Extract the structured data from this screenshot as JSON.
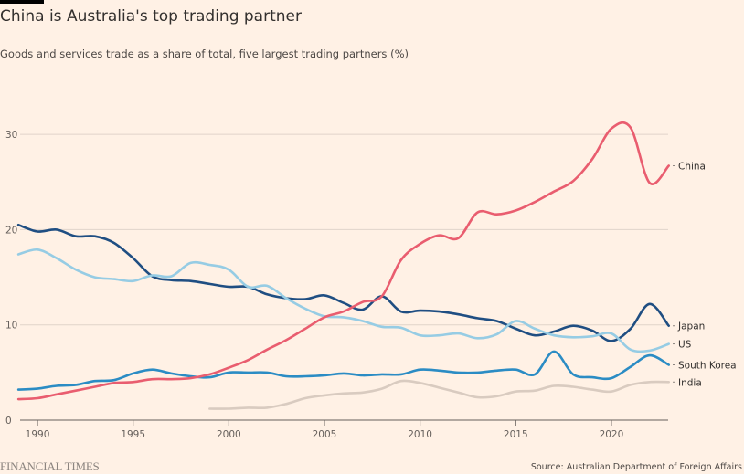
{
  "header": {
    "title": "China is Australia's top trading partner",
    "subtitle": "Goods and services trade as a share of total, five largest trading partners (%)"
  },
  "footer": {
    "brand": "FINANCIAL TIMES",
    "source": "Source: Australian Department of Foreign Affairs"
  },
  "chart_data": {
    "type": "line",
    "title": "China is Australia's top trading partner",
    "subtitle": "Goods and services trade as a share of total, five largest trading partners (%)",
    "xlabel": "",
    "ylabel": "",
    "xlim": [
      1989,
      2023
    ],
    "ylim": [
      0,
      33
    ],
    "x_ticks": [
      "1990",
      "1995",
      "2000",
      "2005",
      "2010",
      "2015",
      "2020"
    ],
    "y_ticks": [
      "0",
      "10",
      "20",
      "30"
    ],
    "grid": true,
    "legend": "direct labels at right",
    "series": [
      {
        "name": "China",
        "color": "#e95d6f",
        "start": 1989,
        "values": [
          2.2,
          2.3,
          2.7,
          3.1,
          3.5,
          3.9,
          4.0,
          4.3,
          4.3,
          4.4,
          4.8,
          5.5,
          6.3,
          7.4,
          8.4,
          9.6,
          10.8,
          11.4,
          12.4,
          13.0,
          16.8,
          18.5,
          19.4,
          19.1,
          21.8,
          21.6,
          22.0,
          22.9,
          24.0,
          25.1,
          27.4,
          30.6,
          30.7,
          24.9,
          26.7
        ]
      },
      {
        "name": "Japan",
        "color": "#1f4e82",
        "start": 1989,
        "values": [
          20.5,
          19.8,
          20.0,
          19.3,
          19.3,
          18.6,
          17.0,
          15.1,
          14.7,
          14.6,
          14.3,
          14.0,
          14.0,
          13.2,
          12.8,
          12.7,
          13.1,
          12.3,
          11.6,
          13.0,
          11.4,
          11.5,
          11.4,
          11.1,
          10.7,
          10.4,
          9.6,
          8.9,
          9.3,
          9.9,
          9.4,
          8.3,
          9.6,
          12.2,
          9.9
        ]
      },
      {
        "name": "US",
        "color": "#96cce4",
        "start": 1989,
        "values": [
          17.4,
          17.9,
          17.0,
          15.8,
          15.0,
          14.8,
          14.6,
          15.2,
          15.1,
          16.5,
          16.3,
          15.8,
          14.0,
          14.1,
          12.8,
          11.7,
          10.9,
          10.8,
          10.4,
          9.8,
          9.7,
          8.9,
          8.9,
          9.1,
          8.6,
          9.0,
          10.4,
          9.6,
          8.9,
          8.7,
          8.8,
          9.1,
          7.4,
          7.3,
          8.0
        ]
      },
      {
        "name": "South Korea",
        "color": "#2b8cc4",
        "start": 1989,
        "values": [
          3.2,
          3.3,
          3.6,
          3.7,
          4.1,
          4.2,
          4.9,
          5.3,
          4.9,
          4.6,
          4.5,
          5.0,
          5.0,
          5.0,
          4.6,
          4.6,
          4.7,
          4.9,
          4.7,
          4.8,
          4.8,
          5.3,
          5.2,
          5.0,
          5.0,
          5.2,
          5.3,
          4.8,
          7.2,
          4.8,
          4.5,
          4.4,
          5.6,
          6.8,
          5.8
        ]
      },
      {
        "name": "India",
        "color": "#d9cbc0",
        "start": 1999,
        "values": [
          1.2,
          1.2,
          1.3,
          1.3,
          1.7,
          2.3,
          2.6,
          2.8,
          2.9,
          3.3,
          4.1,
          3.9,
          3.4,
          2.9,
          2.4,
          2.5,
          3.0,
          3.1,
          3.6,
          3.5,
          3.2,
          3.0,
          3.7,
          4.0,
          4.0
        ]
      }
    ]
  }
}
